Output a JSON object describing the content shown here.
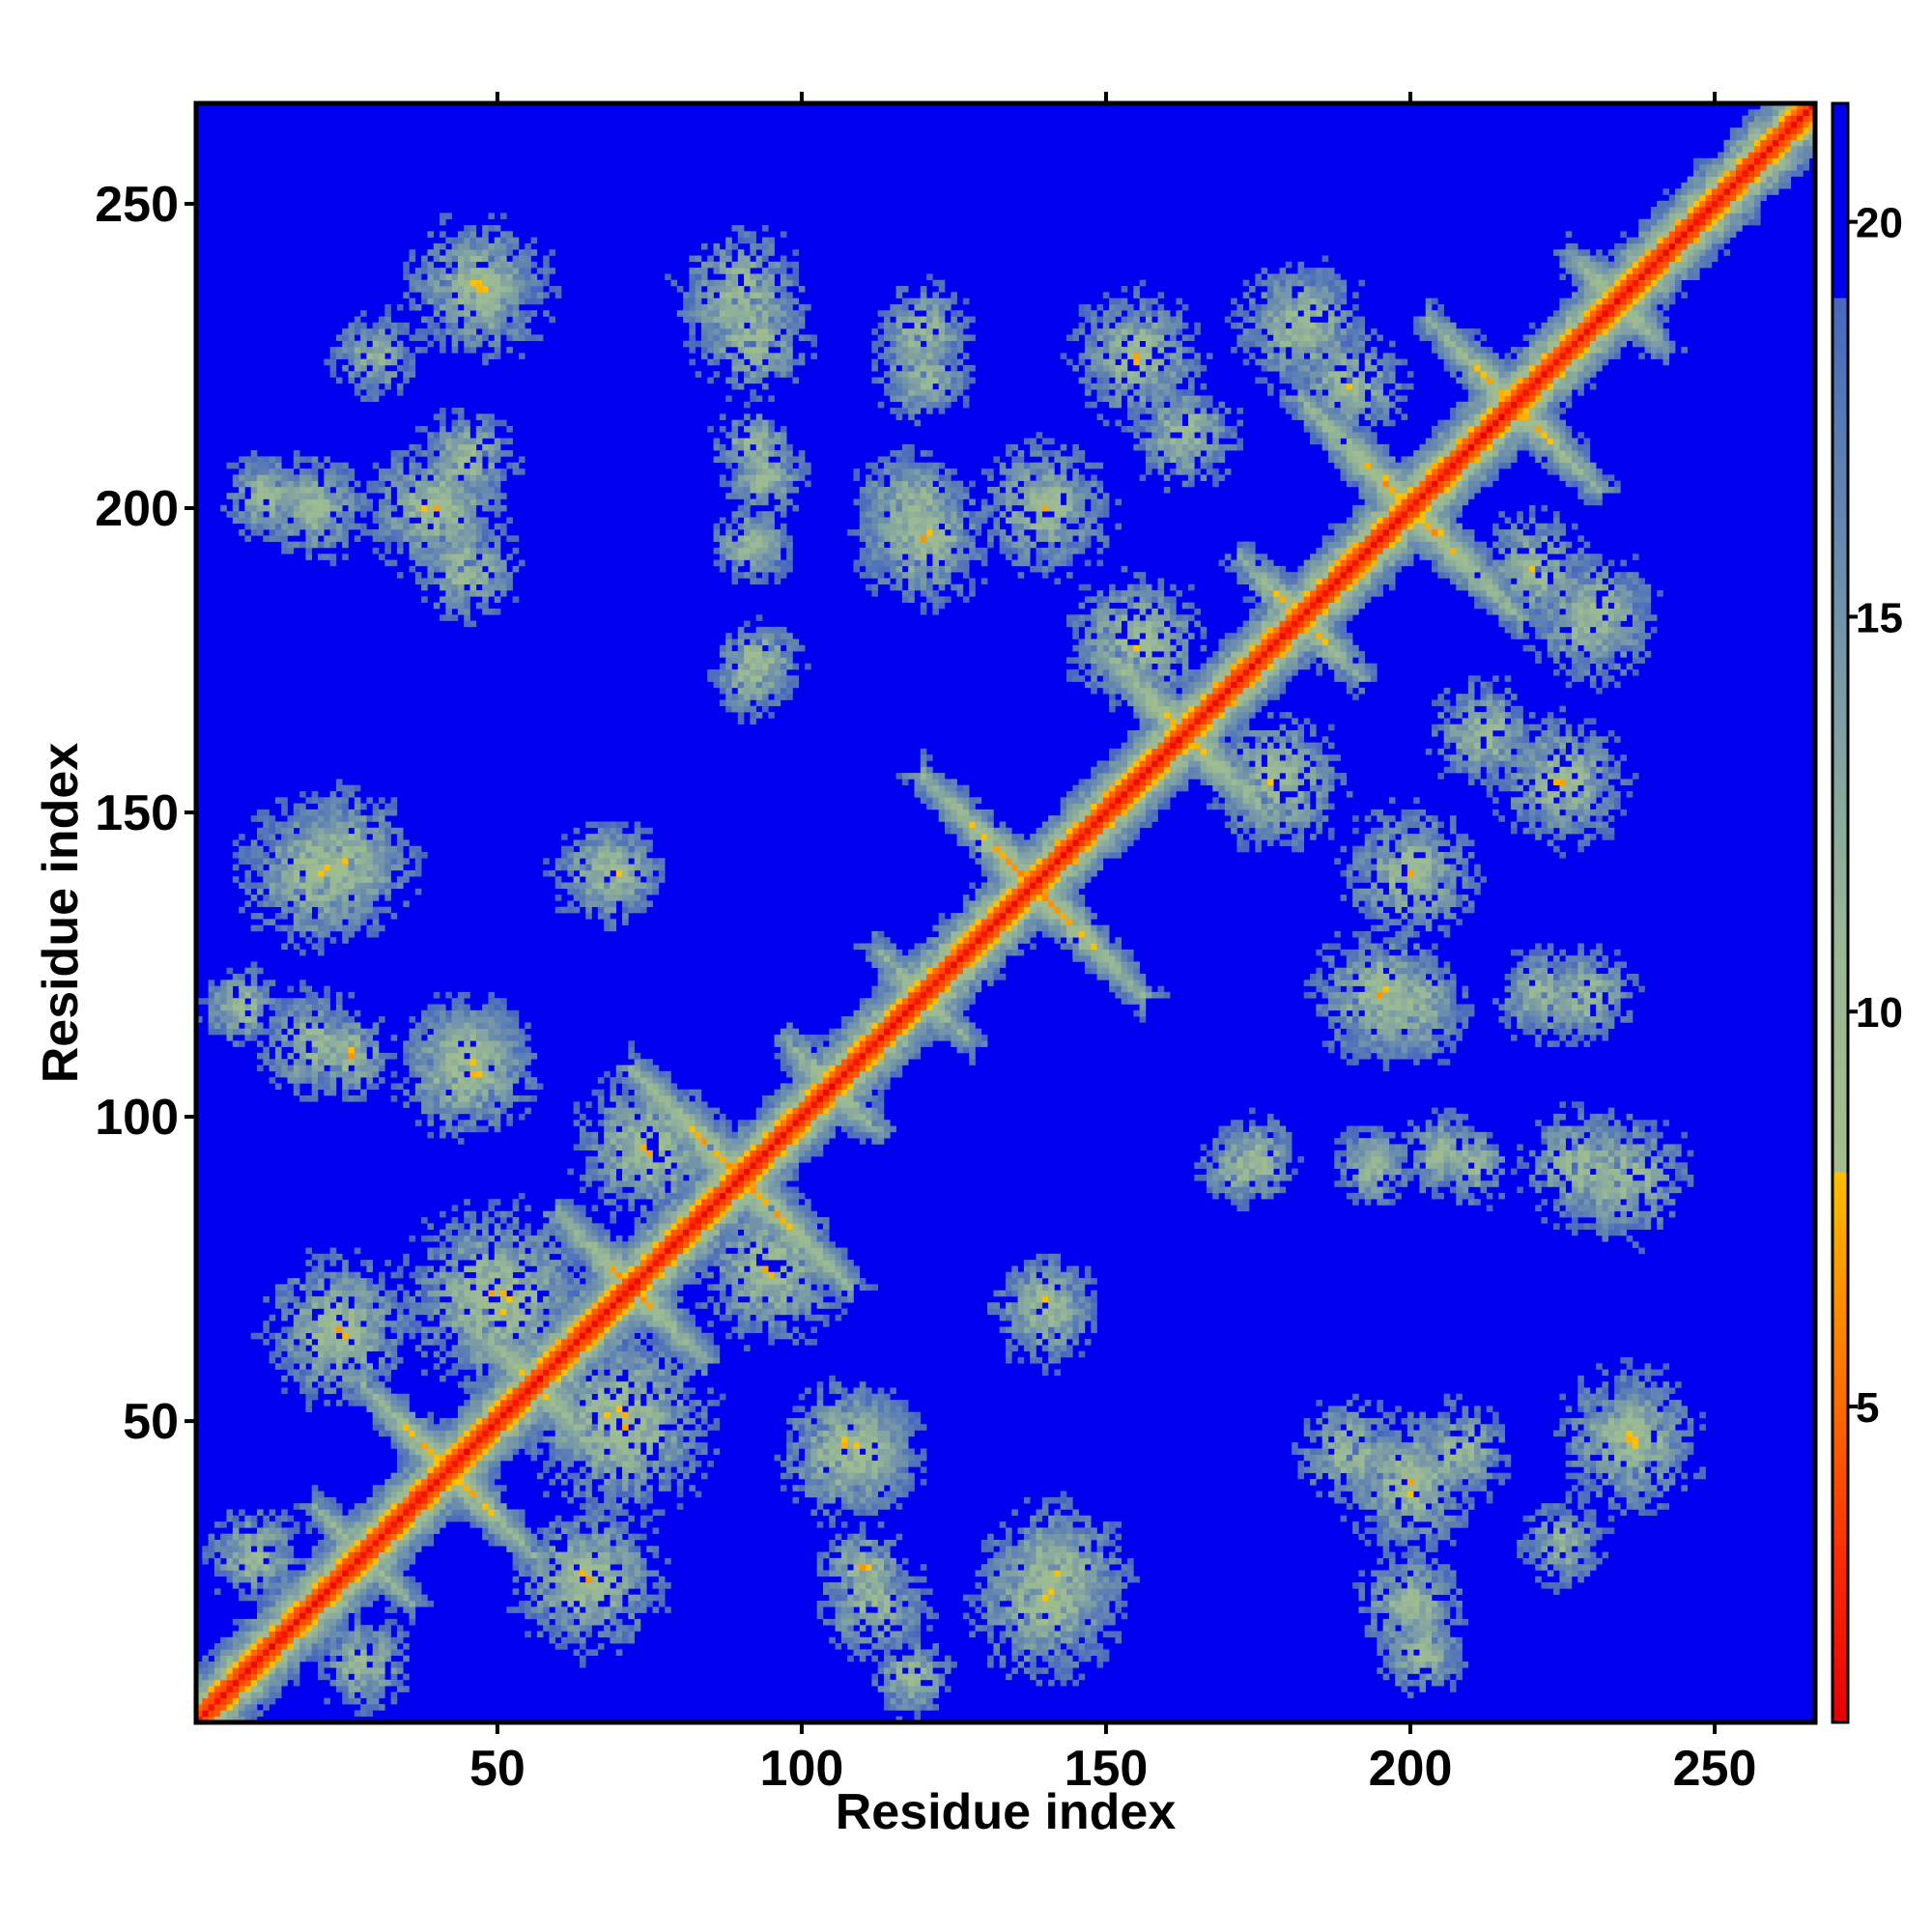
{
  "chart_data": {
    "type": "heatmap",
    "title": "",
    "xlabel": "Residue index",
    "ylabel": "Residue index",
    "n_residues": 266,
    "xlim": [
      1,
      266
    ],
    "ylim": [
      1,
      266
    ],
    "x_ticks": [
      50,
      100,
      150,
      200,
      250
    ],
    "x_tick_labels": [
      "50",
      "100",
      "150",
      "200",
      "250"
    ],
    "y_ticks": [
      50,
      100,
      150,
      200,
      250
    ],
    "y_tick_labels": [
      "50",
      "100",
      "150",
      "200",
      "250"
    ],
    "colorbar": {
      "ticks": [
        5,
        10,
        15,
        20
      ],
      "tick_labels": [
        "5",
        "10",
        "15",
        "20"
      ],
      "range": [
        1,
        21.5
      ],
      "stops": [
        {
          "value": 1,
          "color": "#e60000"
        },
        {
          "value": 3,
          "color": "#ff2a00"
        },
        {
          "value": 5,
          "color": "#ff6a00"
        },
        {
          "value": 7,
          "color": "#ffa200"
        },
        {
          "value": 8,
          "color": "#ffc000"
        },
        {
          "value": 8.01,
          "color": "#a3be8c"
        },
        {
          "value": 11,
          "color": "#98b896"
        },
        {
          "value": 14,
          "color": "#7c9ca6"
        },
        {
          "value": 17,
          "color": "#5c80b4"
        },
        {
          "value": 19,
          "color": "#4868bf"
        },
        {
          "value": 19.01,
          "color": "#0000f0"
        },
        {
          "value": 21.5,
          "color": "#0000f0"
        }
      ]
    },
    "background_color": "#0000f0",
    "diagonal": {
      "value": 1.5,
      "color": "#e60000"
    },
    "features": [
      {
        "kind": "antidiagonal",
        "center": [
          90,
          90
        ],
        "half_length": 18,
        "min_value": 4.5
      },
      {
        "kind": "antidiagonal",
        "center": [
          138,
          138
        ],
        "half_length": 18,
        "min_value": 4.5
      },
      {
        "kind": "antidiagonal",
        "center": [
          163,
          163
        ],
        "half_length": 14,
        "min_value": 5
      },
      {
        "kind": "antidiagonal",
        "center": [
          200,
          200
        ],
        "half_length": 18,
        "min_value": 4.5
      },
      {
        "kind": "antidiagonal",
        "center": [
          217,
          217
        ],
        "half_length": 14,
        "min_value": 5
      },
      {
        "kind": "antidiagonal",
        "center": [
          72,
          72
        ],
        "half_length": 12,
        "min_value": 5
      },
      {
        "kind": "antidiagonal",
        "center": [
          42,
          42
        ],
        "half_length": 14,
        "min_value": 5
      },
      {
        "kind": "antidiagonal",
        "center": [
          56,
          56
        ],
        "half_length": 10,
        "min_value": 5.5
      },
      {
        "kind": "antidiagonal",
        "center": [
          182,
          182
        ],
        "half_length": 10,
        "min_value": 5.5
      },
      {
        "kind": "antidiagonal",
        "center": [
          120,
          120
        ],
        "half_length": 8,
        "min_value": 6
      },
      {
        "kind": "antidiagonal",
        "center": [
          234,
          234
        ],
        "half_length": 8,
        "min_value": 6
      },
      {
        "kind": "antidiagonal",
        "center": [
          28,
          28
        ],
        "half_length": 8,
        "min_value": 6
      },
      {
        "kind": "antidiagonal",
        "center": [
          105,
          105
        ],
        "half_length": 8,
        "min_value": 6
      },
      {
        "kind": "patch",
        "center": [
          48,
          236
        ],
        "radius": 7,
        "min_value": 7
      },
      {
        "kind": "patch",
        "center": [
          92,
          228
        ],
        "radius": 8,
        "min_value": 6.5
      },
      {
        "kind": "patch",
        "center": [
          120,
          222
        ],
        "radius": 7,
        "min_value": 7
      },
      {
        "kind": "patch",
        "center": [
          12,
          202
        ],
        "radius": 6,
        "min_value": 6.5
      },
      {
        "kind": "patch",
        "center": [
          40,
          200
        ],
        "radius": 9,
        "min_value": 6
      },
      {
        "kind": "patch",
        "center": [
          94,
          205
        ],
        "radius": 6,
        "min_value": 7
      },
      {
        "kind": "patch",
        "center": [
          118,
          200
        ],
        "radius": 8,
        "min_value": 6.5
      },
      {
        "kind": "patch",
        "center": [
          93,
          175
        ],
        "radius": 6,
        "min_value": 6.5
      },
      {
        "kind": "patch",
        "center": [
          20,
          140
        ],
        "radius": 10,
        "min_value": 6
      },
      {
        "kind": "patch",
        "center": [
          70,
          140
        ],
        "radius": 6,
        "min_value": 6.5
      },
      {
        "kind": "patch",
        "center": [
          8,
          118
        ],
        "radius": 6,
        "min_value": 7
      },
      {
        "kind": "patch",
        "center": [
          26,
          110
        ],
        "radius": 6,
        "min_value": 6.5
      },
      {
        "kind": "patch",
        "center": [
          45,
          108
        ],
        "radius": 9,
        "min_value": 5.5
      },
      {
        "kind": "patch",
        "center": [
          172,
          92
        ],
        "radius": 6,
        "min_value": 7
      },
      {
        "kind": "patch",
        "center": [
          194,
          92
        ],
        "radius": 6,
        "min_value": 7
      },
      {
        "kind": "patch",
        "center": [
          210,
          92
        ],
        "radius": 6,
        "min_value": 7
      },
      {
        "kind": "patch",
        "center": [
          235,
          90
        ],
        "radius": 9,
        "min_value": 6.5
      },
      {
        "kind": "patch",
        "center": [
          140,
          68
        ],
        "radius": 8,
        "min_value": 7
      },
      {
        "kind": "patch",
        "center": [
          195,
          120
        ],
        "radius": 9,
        "min_value": 6
      },
      {
        "kind": "patch",
        "center": [
          229,
          120
        ],
        "radius": 7,
        "min_value": 7
      },
      {
        "kind": "patch",
        "center": [
          190,
          45
        ],
        "radius": 7,
        "min_value": 6.5
      },
      {
        "kind": "patch",
        "center": [
          208,
          45
        ],
        "radius": 7,
        "min_value": 6.5
      },
      {
        "kind": "patch",
        "center": [
          236,
          47
        ],
        "radius": 10,
        "min_value": 6.5
      },
      {
        "kind": "patch",
        "center": [
          110,
          45
        ],
        "radius": 8,
        "min_value": 6.5
      },
      {
        "kind": "patch",
        "center": [
          142,
          25
        ],
        "radius": 10,
        "min_value": 6.5
      },
      {
        "kind": "patch",
        "center": [
          112,
          20
        ],
        "radius": 8,
        "min_value": 7
      },
      {
        "kind": "patch",
        "center": [
          200,
          20
        ],
        "radius": 8,
        "min_value": 7
      },
      {
        "kind": "patch",
        "center": [
          225,
          30
        ],
        "radius": 7,
        "min_value": 8
      },
      {
        "kind": "patch",
        "center": [
          10,
          28
        ],
        "radius": 7,
        "min_value": 7
      },
      {
        "kind": "patch",
        "center": [
          70,
          50
        ],
        "radius": 12,
        "min_value": 5.5
      },
      {
        "kind": "patch",
        "center": [
          24,
          65
        ],
        "radius": 10,
        "min_value": 6
      },
      {
        "kind": "patch",
        "center": [
          95,
          75
        ],
        "radius": 10,
        "min_value": 6
      },
      {
        "kind": "patch",
        "center": [
          140,
          200
        ],
        "radius": 10,
        "min_value": 7
      },
      {
        "kind": "patch",
        "center": [
          163,
          212
        ],
        "radius": 8,
        "min_value": 7
      },
      {
        "kind": "patch",
        "center": [
          190,
          220
        ],
        "radius": 8,
        "min_value": 6.5
      },
      {
        "kind": "patch",
        "center": [
          230,
          182
        ],
        "radius": 9,
        "min_value": 6.5
      },
      {
        "kind": "patch",
        "center": [
          225,
          155
        ],
        "radius": 9,
        "min_value": 6.5
      },
      {
        "kind": "patch",
        "center": [
          178,
          155
        ],
        "radius": 9,
        "min_value": 6
      }
    ]
  }
}
